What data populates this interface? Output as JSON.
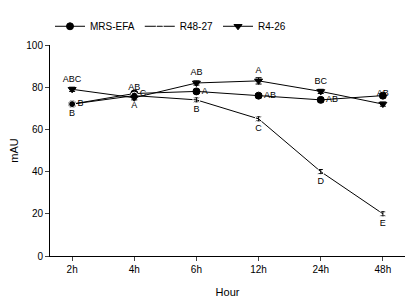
{
  "chart_data": {
    "type": "line",
    "x_label": "Hour",
    "y_label": "mAU",
    "categories": [
      "2h",
      "4h",
      "6h",
      "12h",
      "24h",
      "48h"
    ],
    "ylim": [
      0,
      100
    ],
    "yticks": [
      0,
      20,
      40,
      60,
      80,
      100
    ],
    "grid": false,
    "legend": "top",
    "series": [
      {
        "name": "MRS-EFA",
        "color": "#000000",
        "marker": "circle",
        "line_style": "solid",
        "values": [
          72,
          77,
          78,
          76,
          74,
          76
        ],
        "errors": [
          1,
          1,
          1,
          1,
          1,
          1
        ],
        "letters": [
          "B",
          "C",
          "A",
          "AB",
          "AB",
          null
        ]
      },
      {
        "name": "R48-27",
        "color": "#000000",
        "marker": "circle-open",
        "line_style": "solid",
        "values": [
          72,
          76,
          74,
          65,
          40,
          20
        ],
        "errors": [
          1,
          1,
          1,
          1,
          1,
          1
        ],
        "letters": [
          "B",
          "A",
          "B",
          "C",
          "D",
          "E"
        ]
      },
      {
        "name": "R4-26",
        "color": "#000000",
        "marker": "triangle-down",
        "line_style": "solid",
        "values": [
          79,
          75,
          82,
          83,
          78,
          72
        ],
        "errors": [
          1,
          1,
          1,
          1.5,
          1,
          1
        ],
        "letters": [
          "ABC",
          "AB",
          "AB",
          "A",
          "BC",
          "AB"
        ]
      }
    ]
  }
}
